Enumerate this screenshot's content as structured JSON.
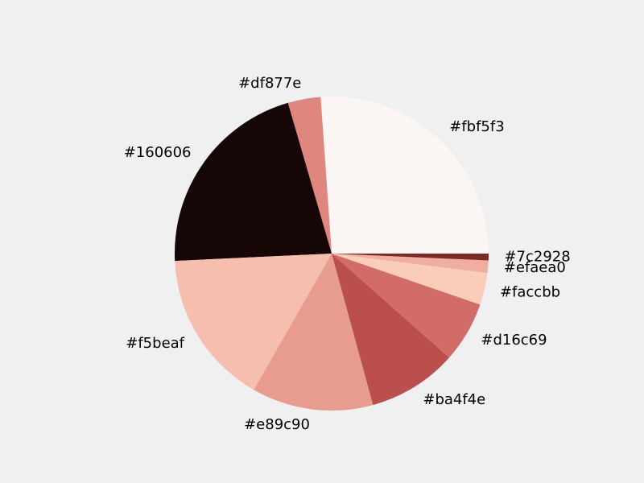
{
  "chart_data": {
    "type": "pie",
    "title": "",
    "start_angle_deg": 0,
    "direction": "counterclockwise",
    "slices": [
      {
        "label": "#fbf5f3",
        "value": 26.3,
        "color": "#fbf5f3"
      },
      {
        "label": "#df877e",
        "value": 3.4,
        "color": "#df877e"
      },
      {
        "label": "#160606",
        "value": 21.4,
        "color": "#160606"
      },
      {
        "label": "#f5beaf",
        "value": 16.1,
        "color": "#f5beaf"
      },
      {
        "label": "#e89c90",
        "value": 12.6,
        "color": "#e89c90"
      },
      {
        "label": "#ba4f4e",
        "value": 9.3,
        "color": "#ba4f4e"
      },
      {
        "label": "#d16c69",
        "value": 6.3,
        "color": "#d16c69"
      },
      {
        "label": "#faccbb",
        "value": 3.3,
        "color": "#faccbb"
      },
      {
        "label": "#efaea0",
        "value": 1.3,
        "color": "#efaea0"
      },
      {
        "label": "#7c2928",
        "value": 0.7,
        "color": "#7c2928"
      }
    ]
  }
}
